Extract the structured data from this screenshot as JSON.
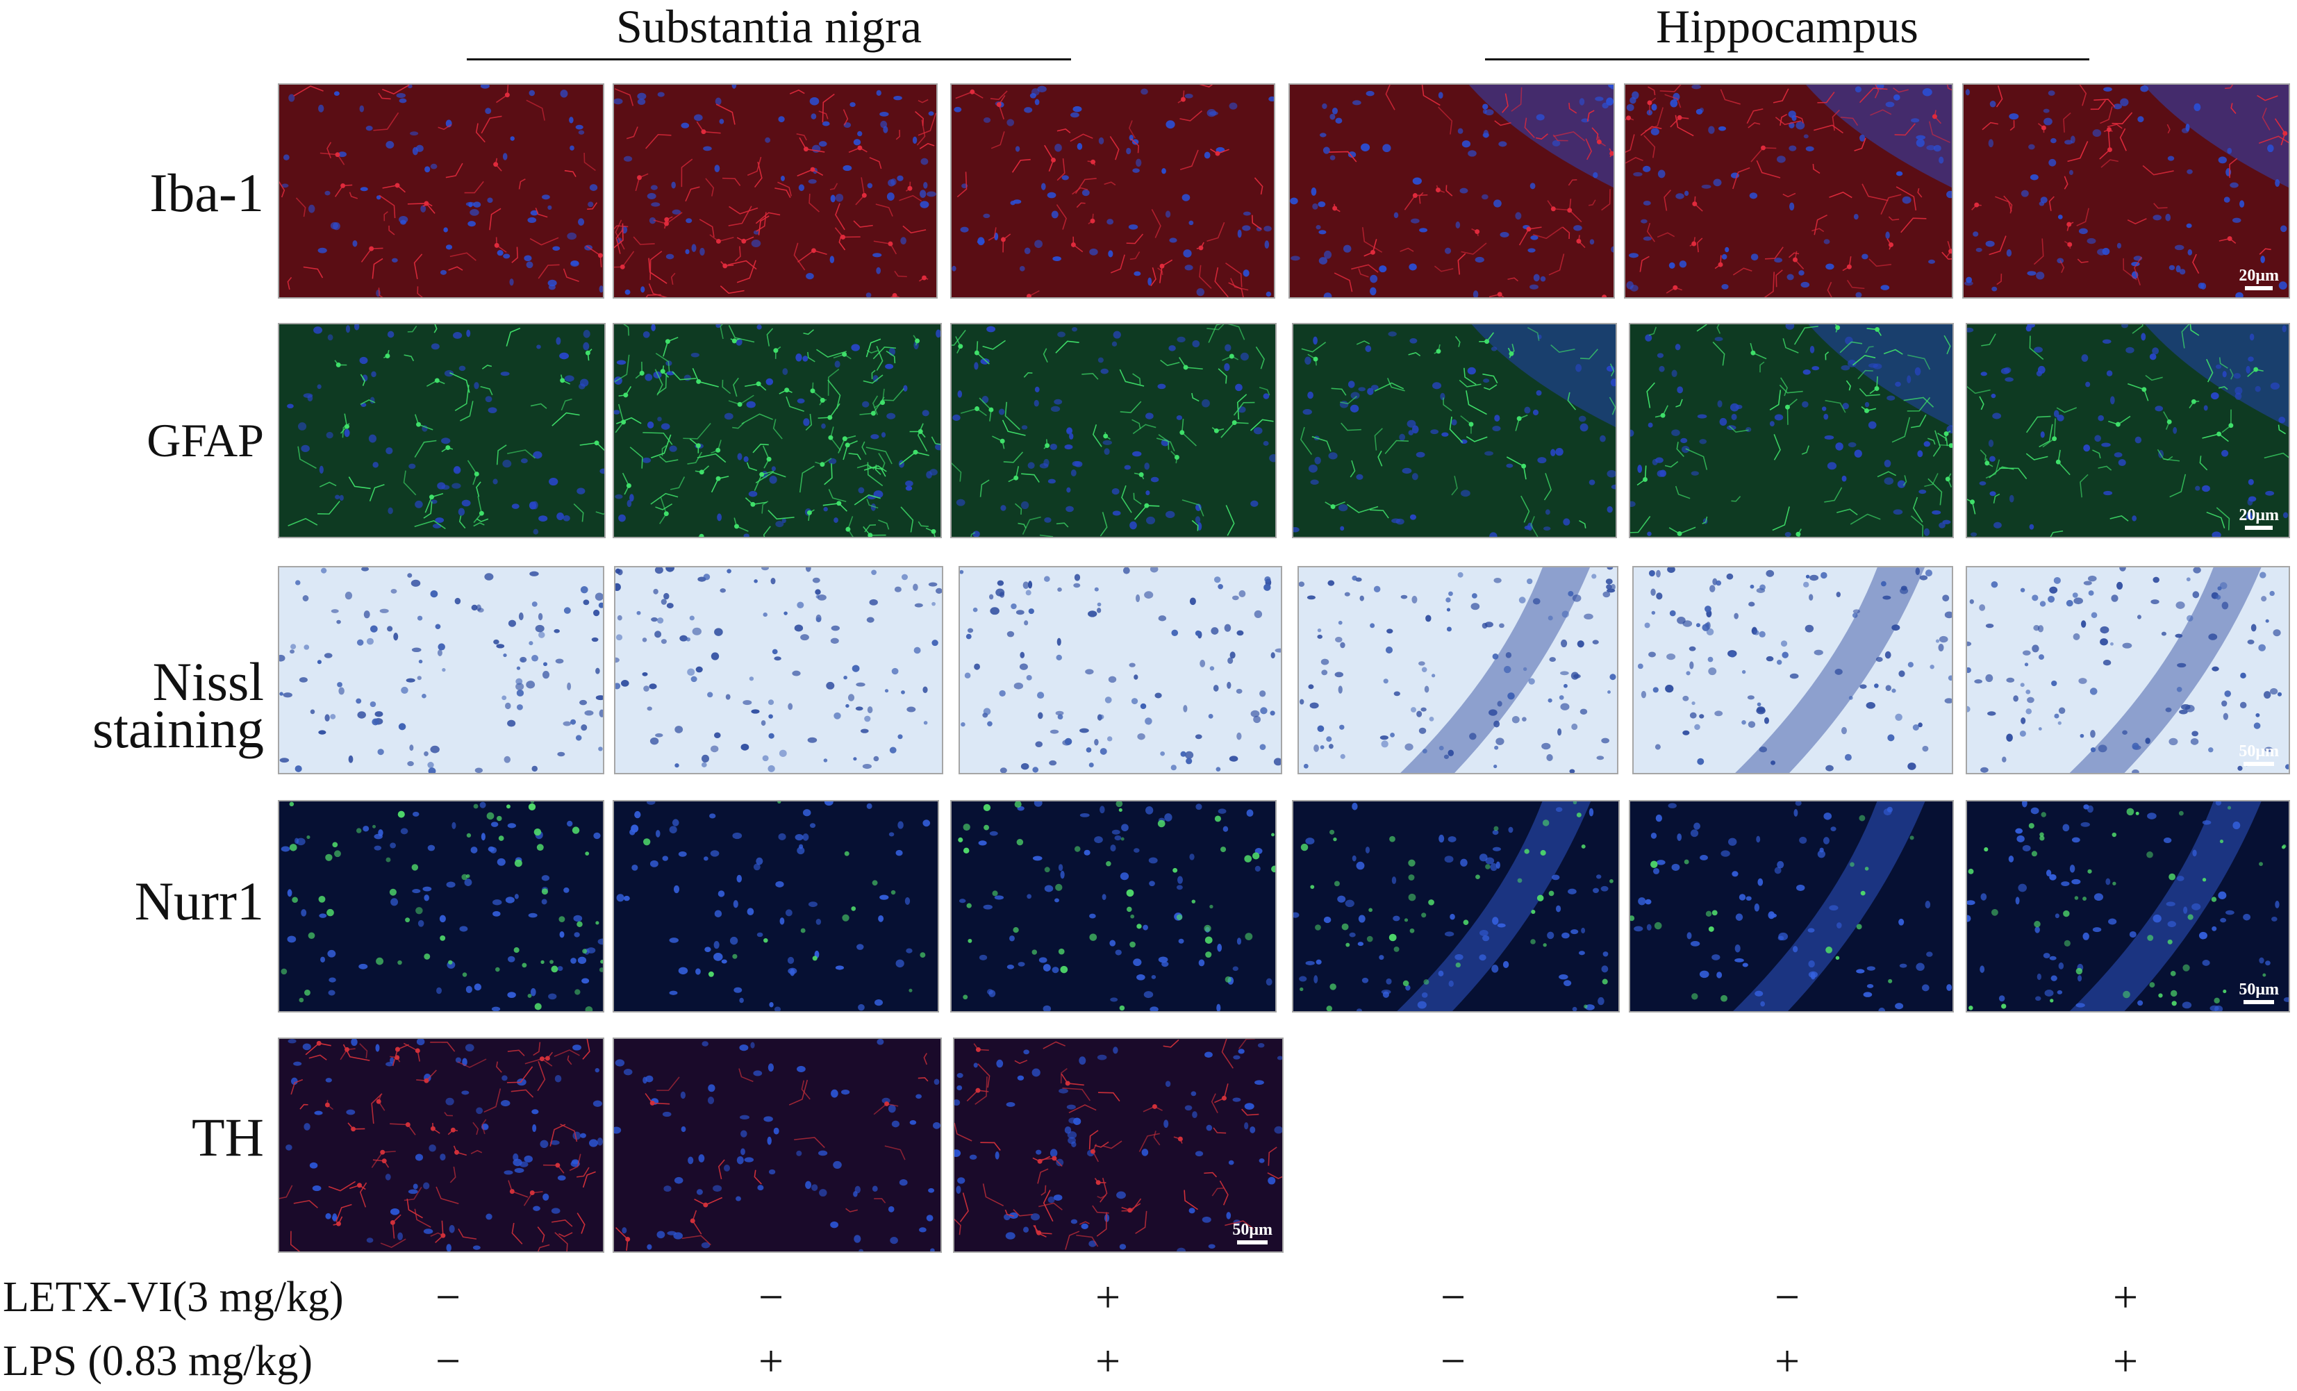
{
  "regions": {
    "substantia_nigra": "Substantia nigra",
    "hippocampus": "Hippocampus"
  },
  "rows": {
    "iba1": "Iba-1",
    "gfap": "GFAP",
    "nissl_line1": "Nissl",
    "nissl_line2": "staining",
    "nurr1": "Nurr1",
    "th": "TH"
  },
  "scale_bars": {
    "iba1": "20μm",
    "gfap": "20μm",
    "nissl": "50μm",
    "nurr1": "50μm",
    "th": "50μm"
  },
  "treatments": {
    "letx_label": "LETX-VI(3 mg/kg)",
    "lps_label": "LPS (0.83 mg/kg)",
    "letx_signs": [
      "−",
      "−",
      "+",
      "−",
      "−",
      "+"
    ],
    "lps_signs": [
      "−",
      "+",
      "+",
      "−",
      "+",
      "+"
    ]
  },
  "stain_colors": {
    "iba1": {
      "bg": "#5a0d14",
      "cell": "#e02a3c",
      "nucleus": "#2a4fd6"
    },
    "gfap": {
      "bg": "#0e3a22",
      "cell": "#3fe06a",
      "nucleus": "#2846c9"
    },
    "nissl": {
      "bg": "#dce8f6",
      "cell": "#3f62b5",
      "nucleus": "#2c4a9e"
    },
    "nurr1": {
      "bg": "#061033",
      "cell": "#4fd86a",
      "nucleus": "#3561e0"
    },
    "th": {
      "bg": "#1a0a2a",
      "cell": "#d0303a",
      "nucleus": "#2c57d8"
    }
  }
}
